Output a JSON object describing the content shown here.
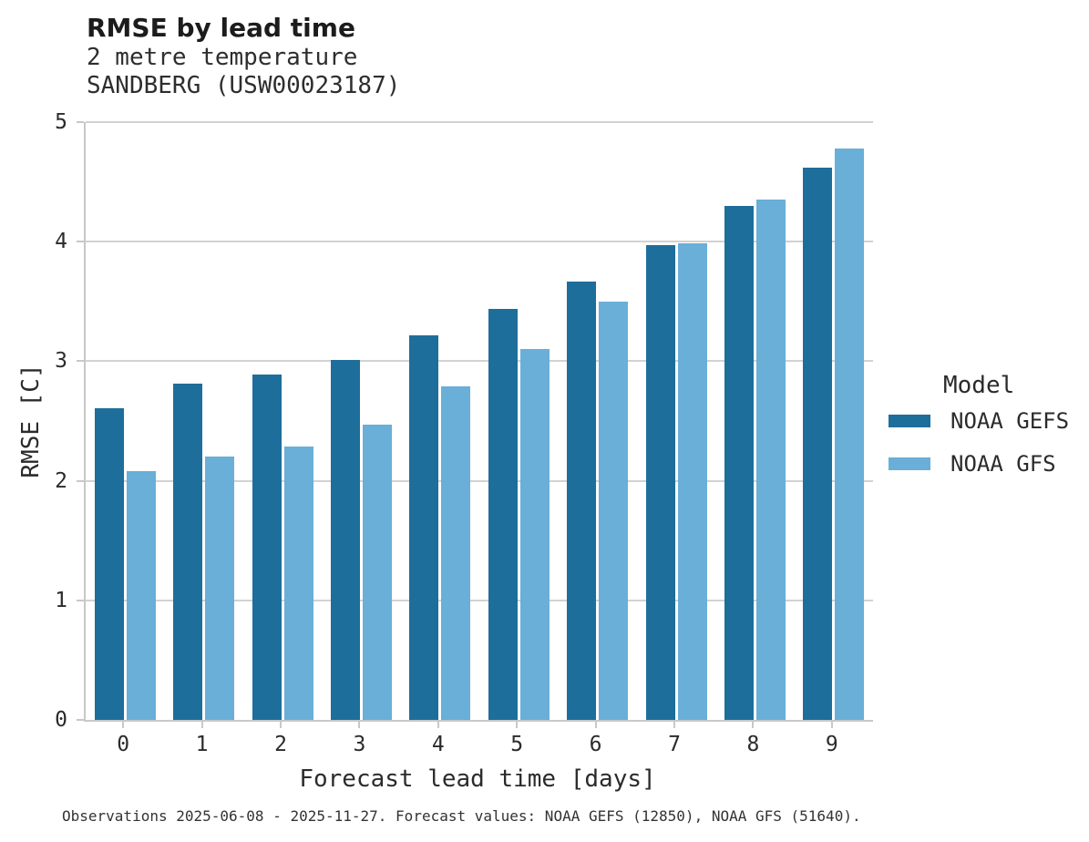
{
  "header": {
    "title": "RMSE by lead time",
    "subtitle": "2 metre temperature",
    "station": "SANDBERG (USW00023187)"
  },
  "legend": {
    "title": "Model"
  },
  "footer": {
    "caption": "Observations 2025-06-08 - 2025-11-27. Forecast values: NOAA GEFS (12850), NOAA GFS (51640)."
  },
  "colors": {
    "gefs_dark_blue": "#1e6e9b",
    "gfs_light_blue": "#69afd7",
    "gridline_gray": "#d2d2d2",
    "spine_gray": "#c8c8c8"
  },
  "chart_data": {
    "type": "bar",
    "title": "RMSE by lead time",
    "subtitle": [
      "2 metre temperature",
      "SANDBERG (USW00023187)"
    ],
    "categories": [
      "0",
      "1",
      "2",
      "3",
      "4",
      "5",
      "6",
      "7",
      "8",
      "9"
    ],
    "series": [
      {
        "name": "NOAA GEFS",
        "color": "#1e6e9b",
        "values": [
          2.61,
          2.81,
          2.89,
          3.01,
          3.22,
          3.44,
          3.67,
          3.97,
          4.3,
          4.62
        ]
      },
      {
        "name": "NOAA GFS",
        "color": "#69afd7",
        "values": [
          2.08,
          2.2,
          2.29,
          2.47,
          2.79,
          3.1,
          3.5,
          3.99,
          4.35,
          4.78
        ]
      }
    ],
    "xlabel": "Forecast lead time [days]",
    "ylabel": "RMSE [C]",
    "ylim": [
      0,
      5
    ],
    "yticks": [
      0,
      1,
      2,
      3,
      4,
      5
    ],
    "grid": "horizontal",
    "legend_position": "right",
    "legend_title": "Model"
  }
}
